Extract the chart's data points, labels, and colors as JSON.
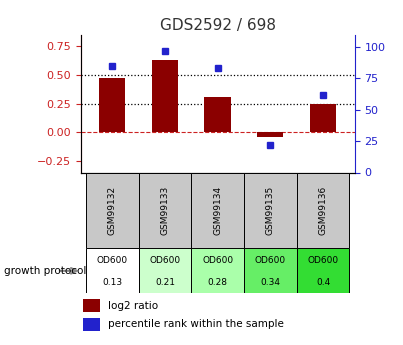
{
  "title": "GDS2592 / 698",
  "samples": [
    "GSM99132",
    "GSM99133",
    "GSM99134",
    "GSM99135",
    "GSM99136"
  ],
  "log2_ratio": [
    0.47,
    0.63,
    0.31,
    -0.04,
    0.25
  ],
  "percentile_rank": [
    85,
    97,
    83,
    22,
    62
  ],
  "growth_protocol_label": "OD600",
  "growth_protocol_values": [
    "0.13",
    "0.21",
    "0.28",
    "0.34",
    "0.4"
  ],
  "cell_colors_gsm": [
    "#cccccc",
    "#cccccc",
    "#cccccc",
    "#cccccc",
    "#cccccc"
  ],
  "cell_colors_proto": [
    "#ffffff",
    "#ccffcc",
    "#aaffaa",
    "#66ee66",
    "#33dd33"
  ],
  "bar_color": "#8b0000",
  "dot_color": "#2222cc",
  "bar_width": 0.5,
  "ylim_left": [
    -0.35,
    0.85
  ],
  "ylim_right": [
    0,
    110
  ],
  "yticks_left": [
    -0.25,
    0.0,
    0.25,
    0.5,
    0.75
  ],
  "yticks_right": [
    0,
    25,
    50,
    75,
    100
  ],
  "hline_values": [
    0.25,
    0.5
  ],
  "hline_color": "#000000",
  "zero_line_color": "#cc2222",
  "background_color": "#ffffff",
  "title_color": "#333333",
  "left_axis_color": "#cc2222",
  "right_axis_color": "#2222cc",
  "gsm_row_color": "#c8c8c8",
  "legend_red_label": "log2 ratio",
  "legend_blue_label": "percentile rank within the sample"
}
